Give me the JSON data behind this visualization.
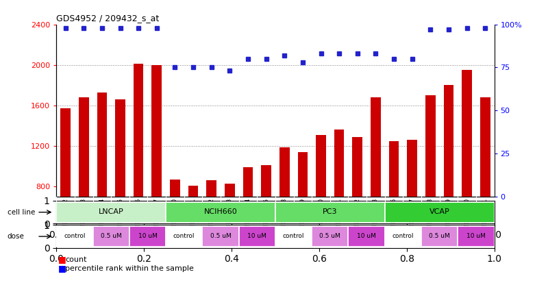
{
  "title": "GDS4952 / 209432_s_at",
  "samples": [
    "GSM1359772",
    "GSM1359773",
    "GSM1359774",
    "GSM1359775",
    "GSM1359776",
    "GSM1359777",
    "GSM1359760",
    "GSM1359761",
    "GSM1359762",
    "GSM1359763",
    "GSM1359764",
    "GSM1359765",
    "GSM1359778",
    "GSM1359779",
    "GSM1359780",
    "GSM1359781",
    "GSM1359782",
    "GSM1359783",
    "GSM1359766",
    "GSM1359767",
    "GSM1359768",
    "GSM1359769",
    "GSM1359770",
    "GSM1359771"
  ],
  "counts": [
    1570,
    1680,
    1730,
    1660,
    2010,
    2000,
    870,
    810,
    865,
    830,
    990,
    1010,
    1190,
    1140,
    1310,
    1360,
    1290,
    1680,
    1245,
    1260,
    1700,
    1800,
    1950,
    1680
  ],
  "percentiles": [
    98,
    98,
    98,
    98,
    98,
    98,
    75,
    75,
    75,
    73,
    80,
    80,
    82,
    78,
    83,
    83,
    83,
    83,
    80,
    80,
    97,
    97,
    98,
    98
  ],
  "cell_lines": [
    {
      "name": "LNCAP",
      "start": 0,
      "end": 6,
      "color": "#c8f0c8"
    },
    {
      "name": "NCIH660",
      "start": 6,
      "end": 12,
      "color": "#66dd66"
    },
    {
      "name": "PC3",
      "start": 12,
      "end": 18,
      "color": "#66dd66"
    },
    {
      "name": "VCAP",
      "start": 18,
      "end": 24,
      "color": "#33cc33"
    }
  ],
  "dose_groups": [
    {
      "label": "control",
      "start": 0,
      "end": 2
    },
    {
      "label": "0.5 uM",
      "start": 2,
      "end": 4
    },
    {
      "label": "10 uM",
      "start": 4,
      "end": 6
    },
    {
      "label": "control",
      "start": 6,
      "end": 8
    },
    {
      "label": "0.5 uM",
      "start": 8,
      "end": 10
    },
    {
      "label": "10 uM",
      "start": 10,
      "end": 12
    },
    {
      "label": "control",
      "start": 12,
      "end": 14
    },
    {
      "label": "0.5 uM",
      "start": 14,
      "end": 16
    },
    {
      "label": "10 uM",
      "start": 16,
      "end": 18
    },
    {
      "label": "control",
      "start": 18,
      "end": 20
    },
    {
      "label": "0.5 uM",
      "start": 20,
      "end": 22
    },
    {
      "label": "10 uM",
      "start": 22,
      "end": 24
    }
  ],
  "dose_colors": {
    "control": "#ffffff",
    "0.5 uM": "#dd88dd",
    "10 uM": "#cc44cc"
  },
  "bar_color": "#cc0000",
  "dot_color": "#2222cc",
  "ylim_left": [
    700,
    2400
  ],
  "ylim_right": [
    0,
    100
  ],
  "yticks_left": [
    800,
    1200,
    1600,
    2000,
    2400
  ],
  "yticks_right": [
    0,
    25,
    50,
    75,
    100
  ],
  "ytick_right_labels": [
    "0",
    "25",
    "50",
    "75",
    "100%"
  ],
  "grid_values": [
    2000,
    1600,
    1200
  ],
  "bg_color": "#ffffff",
  "bar_bottom": 700,
  "xticklabel_bg": "#dddddd"
}
